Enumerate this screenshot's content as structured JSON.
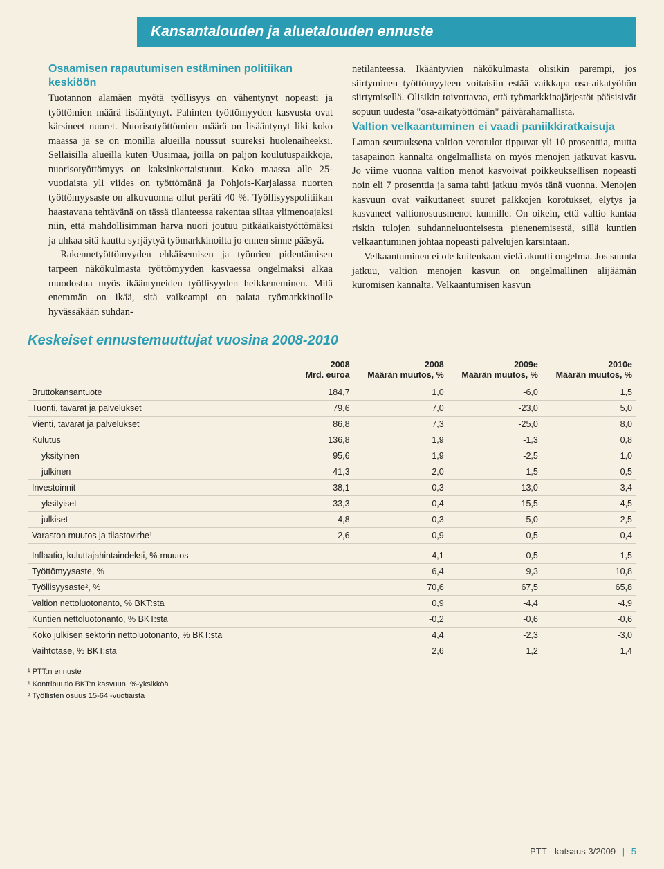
{
  "header": {
    "title": "Kansantalouden ja aluetalouden ennuste"
  },
  "colors": {
    "accent": "#2a9db5",
    "background": "#f5f0e1",
    "text": "#222222",
    "rule": "rgba(0,0,0,0.15)"
  },
  "left": {
    "subhead": "Osaamisen rapautumisen estäminen politiikan keskiöön",
    "p1": "Tuotannon alamäen myötä työllisyys on vähentynyt nopeasti ja työttömien määrä lisääntynyt. Pahinten työttömyyden kasvusta ovat kärsineet nuoret. Nuorisotyöttömien määrä on lisääntynyt liki koko maassa ja se on monilla alueilla noussut suureksi huolenaiheeksi. Sellaisilla alueilla kuten Uusimaa, joilla on paljon koulutuspaikkoja, nuorisotyöttömyys on kaksinkertaistunut. Koko maassa alle 25-vuotiaista yli viides on työttömänä ja Pohjois-Karjalassa nuorten työttömyysaste on alkuvuonna ollut peräti 40 %. Työllisyyspolitiikan haastavana tehtävänä on tässä tilanteessa rakentaa siltaa ylimenoajaksi niin, että mahdollisimman harva nuori joutuu pitkäaikaistyöttömäksi ja uhkaa sitä kautta syrjäytyä työmarkkinoilta jo ennen sinne pääsyä.",
    "p2": "Rakennetyöttömyyden ehkäisemisen ja työurien pidentämisen tarpeen näkökulmasta työttömyyden kasvaessa ongelmaksi alkaa muodostua myös ikääntyneiden työllisyyden heikkeneminen. Mitä enemmän on ikää, sitä vaikeampi on palata työmarkkinoille hyvässäkään suhdan-"
  },
  "right": {
    "p1": "netilanteessa. Ikääntyvien näkökulmasta olisikin parempi, jos siirtyminen työttömyyteen voitaisiin estää vaikkapa osa-aikatyöhön siirtymisellä. Olisikin toivottavaa, että työmarkkinajärjestöt pääsisivät sopuun uudesta \"osa-aikatyöttömän\" päivärahamallista.",
    "subhead": "Valtion velkaantuminen ei vaadi paniikkiratkaisuja",
    "p2": "Laman seurauksena valtion verotulot tippuvat yli 10 prosenttia, mutta tasapainon kannalta ongelmallista on myös menojen jatkuvat kasvu. Jo viime vuonna valtion menot kasvoivat poikkeuksellisen nopeasti noin eli 7 prosenttia ja sama tahti jatkuu myös tänä vuonna. Menojen kasvuun ovat vaikuttaneet suuret palkkojen korotukset, elytys ja kasvaneet valtionosuusmenot kunnille. On oikein, että valtio kantaa riskin tulojen suhdanneluonteisesta pienenemisestä, sillä kuntien velkaantuminen johtaa nopeasti palvelujen karsintaan.",
    "p3": "Velkaantuminen ei ole kuitenkaan vielä akuutti ongelma. Jos suunta jatkuu, valtion menojen kasvun on ongelmallinen alijäämän kuromisen kannalta. Velkaantumisen kasvun"
  },
  "table": {
    "title": "Keskeiset ennustemuuttujat vuosina 2008-2010",
    "columns": [
      {
        "label": "",
        "sub": ""
      },
      {
        "label": "2008",
        "sub": "Mrd. euroa"
      },
      {
        "label": "2008",
        "sub": "Määrän muutos, %"
      },
      {
        "label": "2009e",
        "sub": "Määrän muutos, %"
      },
      {
        "label": "2010e",
        "sub": "Määrän muutos, %"
      }
    ],
    "rows": [
      {
        "label": "Bruttokansantuote",
        "v": [
          "184,7",
          "1,0",
          "-6,0",
          "1,5"
        ],
        "indent": false
      },
      {
        "label": "Tuonti, tavarat ja palvelukset",
        "v": [
          "79,6",
          "7,0",
          "-23,0",
          "5,0"
        ],
        "indent": false
      },
      {
        "label": "Vienti, tavarat ja palvelukset",
        "v": [
          "86,8",
          "7,3",
          "-25,0",
          "8,0"
        ],
        "indent": false
      },
      {
        "label": "Kulutus",
        "v": [
          "136,8",
          "1,9",
          "-1,3",
          "0,8"
        ],
        "indent": false
      },
      {
        "label": "yksityinen",
        "v": [
          "95,6",
          "1,9",
          "-2,5",
          "1,0"
        ],
        "indent": true
      },
      {
        "label": "julkinen",
        "v": [
          "41,3",
          "2,0",
          "1,5",
          "0,5"
        ],
        "indent": true
      },
      {
        "label": "Investoinnit",
        "v": [
          "38,1",
          "0,3",
          "-13,0",
          "-3,4"
        ],
        "indent": false
      },
      {
        "label": "yksityiset",
        "v": [
          "33,3",
          "0,4",
          "-15,5",
          "-4,5"
        ],
        "indent": true
      },
      {
        "label": "julkiset",
        "v": [
          "4,8",
          "-0,3",
          "5,0",
          "2,5"
        ],
        "indent": true
      },
      {
        "label": "Varaston muutos ja tilastovirhe¹",
        "v": [
          "2,6",
          "-0,9",
          "-0,5",
          "0,4"
        ],
        "indent": false
      }
    ],
    "rows2": [
      {
        "label": "Inflaatio, kuluttajahintaindeksi, %-muutos",
        "v": [
          "",
          "4,1",
          "0,5",
          "1,5"
        ]
      },
      {
        "label": "Työttömyysaste, %",
        "v": [
          "",
          "6,4",
          "9,3",
          "10,8"
        ]
      },
      {
        "label": "Työllisyysaste², %",
        "v": [
          "",
          "70,6",
          "67,5",
          "65,8"
        ]
      },
      {
        "label": "Valtion nettoluotonanto, % BKT:sta",
        "v": [
          "",
          "0,9",
          "-4,4",
          "-4,9"
        ]
      },
      {
        "label": "Kuntien nettoluotonanto, % BKT:sta",
        "v": [
          "",
          "-0,2",
          "-0,6",
          "-0,6"
        ]
      },
      {
        "label": "Koko julkisen sektorin nettoluotonanto, % BKT:sta",
        "v": [
          "",
          "4,4",
          "-2,3",
          "-3,0"
        ]
      },
      {
        "label": "Vaihtotase, % BKT:sta",
        "v": [
          "",
          "2,6",
          "1,2",
          "1,4"
        ]
      }
    ],
    "footnotes": [
      "¹ PTT:n ennuste",
      "¹ Kontribuutio BKT:n kasvuun, %-yksikköä",
      "² Työllisten osuus 15-64 -vuotiaista"
    ]
  },
  "footer": {
    "journal": "PTT - katsaus 3/2009",
    "page": "5"
  }
}
